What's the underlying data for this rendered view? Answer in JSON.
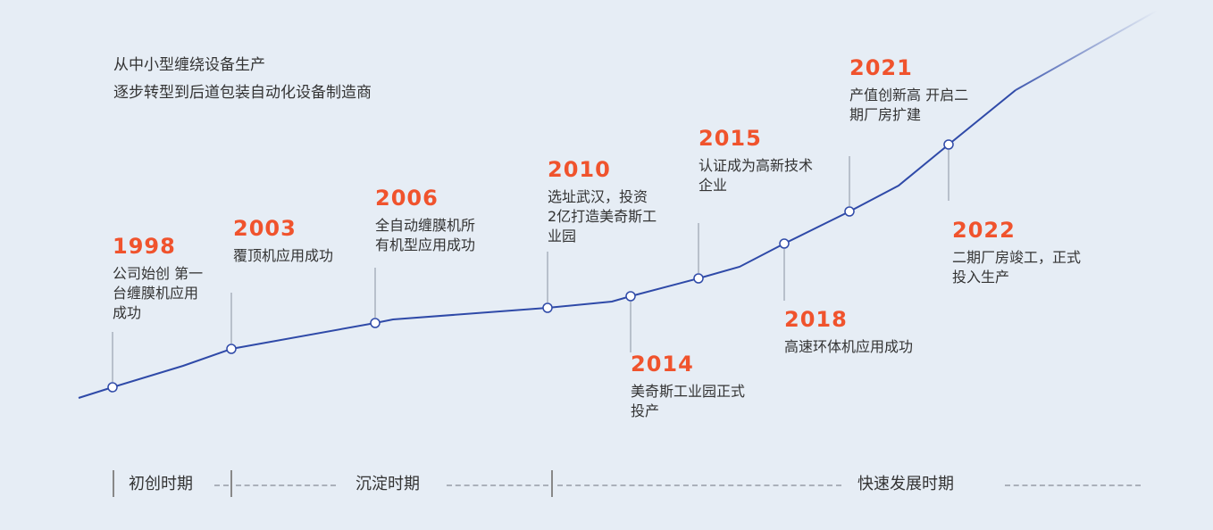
{
  "intro": [
    "从中小型缠绕设备生产",
    "逐步转型到后道包装自动化设备制造商"
  ],
  "colors": {
    "background": "#e6edf5",
    "line": "#2f4aa8",
    "year": "#f0532d",
    "text": "#333333"
  },
  "events": [
    {
      "year": "1998",
      "desc": "公司始创 第一\n台缠膜机应用\n成功"
    },
    {
      "year": "2003",
      "desc": "覆顶机应用成功"
    },
    {
      "year": "2006",
      "desc": "全自动缠膜机所\n有机型应用成功"
    },
    {
      "year": "2010",
      "desc": "选址武汉，投资\n2亿打造美奇斯工\n业园"
    },
    {
      "year": "2014",
      "desc": "美奇斯工业园正式\n投产"
    },
    {
      "year": "2015",
      "desc": "认证成为高新技术\n企业"
    },
    {
      "year": "2018",
      "desc": "高速环体机应用成功"
    },
    {
      "year": "2021",
      "desc": "产值创新高 开启二\n期厂房扩建"
    },
    {
      "year": "2022",
      "desc": "二期厂房竣工，正式\n投入生产"
    }
  ],
  "phases": [
    "初创时期",
    "沉淀时期",
    "快速发展时期"
  ]
}
